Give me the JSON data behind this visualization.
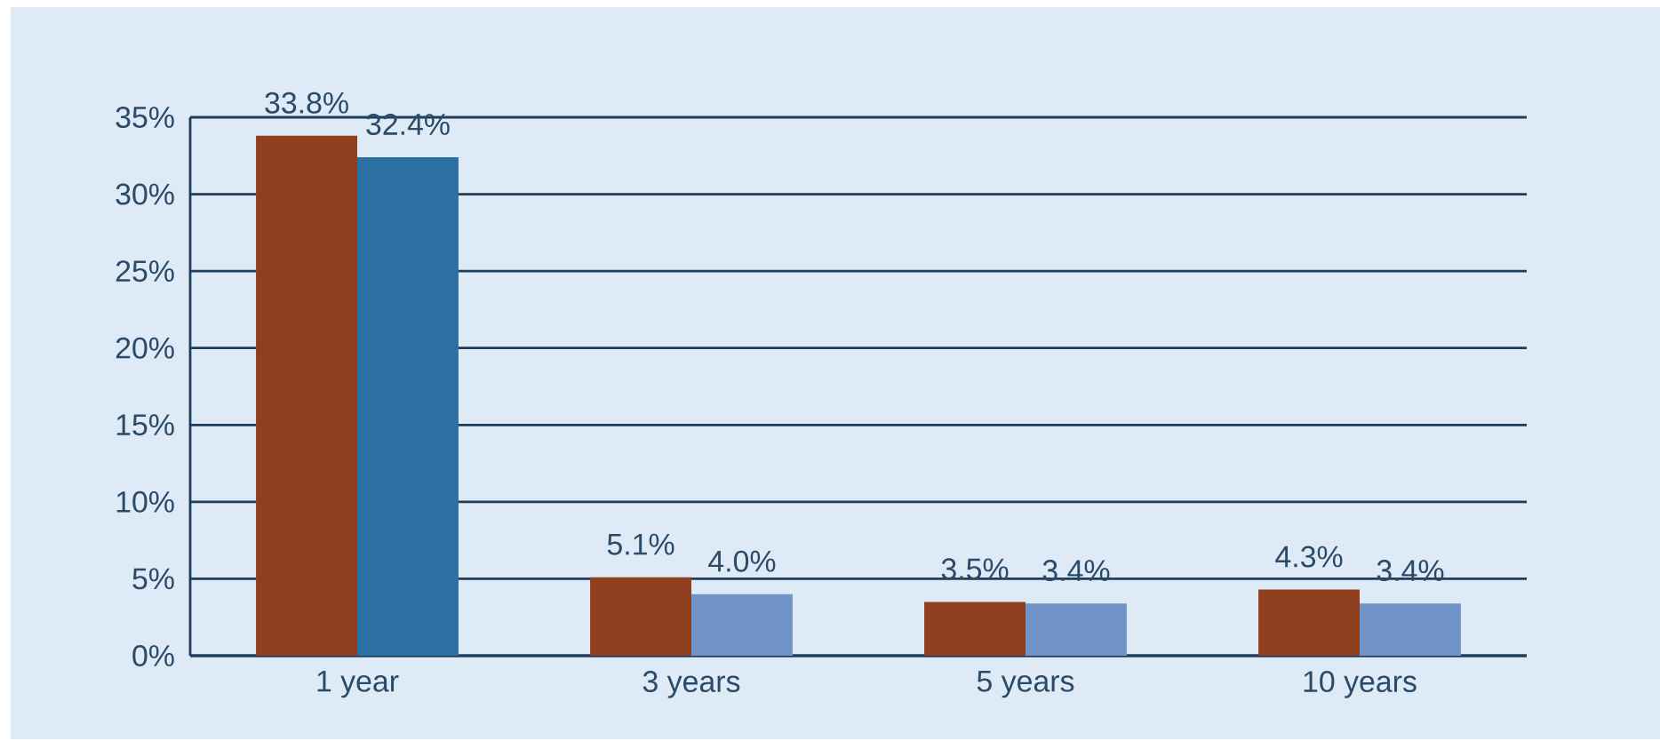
{
  "chart_data": {
    "type": "bar",
    "categories": [
      "1 year",
      "3 years",
      "5 years",
      "10 years"
    ],
    "series": [
      {
        "color": "#8f3f1e",
        "values": [
          33.8,
          5.1,
          3.5,
          4.3
        ],
        "value_labels": [
          "33.8%",
          "5.1%",
          "3.5%",
          "4.3%"
        ]
      },
      {
        "colors": [
          "#2b70a0",
          "#7094c8",
          "#7094c8",
          "#7094c8"
        ],
        "values": [
          32.4,
          4.0,
          3.4,
          3.4
        ],
        "value_labels": [
          "32.4%",
          "4.0%",
          "3.4%",
          "3.4%"
        ]
      }
    ],
    "ylim": [
      0,
      35
    ],
    "yticks": [
      {
        "value": 0,
        "label": "0%"
      },
      {
        "value": 5,
        "label": "5%"
      },
      {
        "value": 10,
        "label": "10%"
      },
      {
        "value": 15,
        "label": "15%"
      },
      {
        "value": 20,
        "label": "20%"
      },
      {
        "value": 25,
        "label": "25%"
      },
      {
        "value": 30,
        "label": "30%"
      },
      {
        "value": 35,
        "label": "35%"
      }
    ],
    "grid": "y"
  }
}
